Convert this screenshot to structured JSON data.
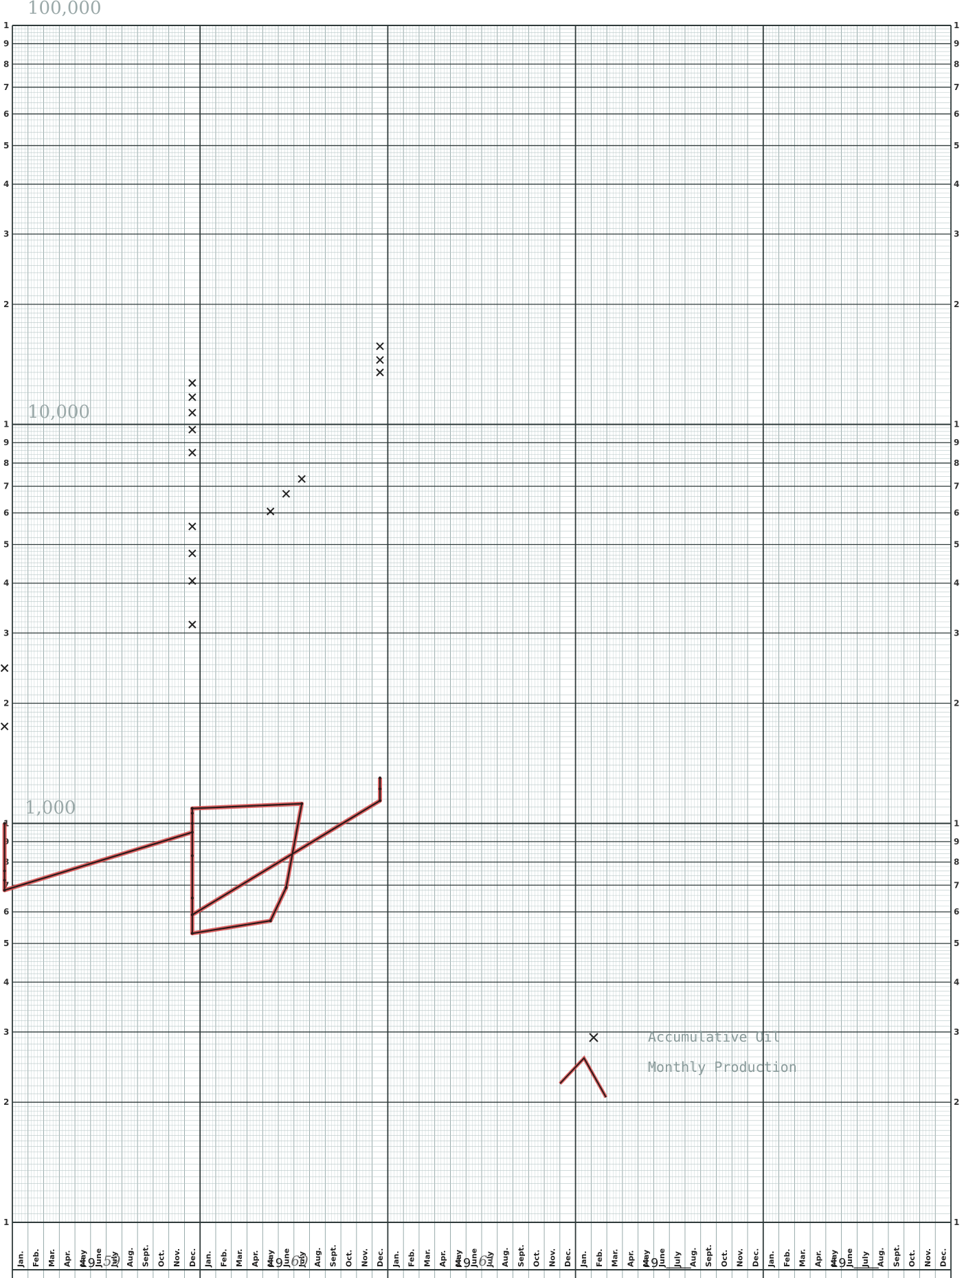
{
  "chart_data": {
    "type": "line",
    "scale": "log",
    "ylim": [
      100,
      100000
    ],
    "decade_labels": [
      "100,000",
      "10,000",
      "1,000"
    ],
    "cycle_ticks": [
      "1",
      "9",
      "8",
      "7",
      "6",
      "5",
      "4",
      "3",
      "2"
    ],
    "bottom_tick": "1",
    "months": [
      "Jan.",
      "Feb.",
      "Mar.",
      "Apr.",
      "May",
      "June",
      "July",
      "Aug.",
      "Sept.",
      "Oct.",
      "Nov.",
      "Dec."
    ],
    "years": [
      {
        "prefix": "19",
        "suffix": "59"
      },
      {
        "prefix": "19",
        "suffix": "60"
      },
      {
        "prefix": "19",
        "suffix": "61"
      },
      {
        "prefix": "19",
        "suffix": "____"
      },
      {
        "prefix": "19",
        "suffix": "____"
      }
    ],
    "grid": true,
    "legend_position": "bottom-right",
    "series": [
      {
        "name": "Accumulative Oil",
        "marker": "X",
        "color": "#222222",
        "x": [
          "1959-Nov",
          "1959-Dec",
          "1960-Jan",
          "1960-Feb",
          "1960-Mar",
          "1960-Apr",
          "1960-May",
          "1960-June",
          "1960-July",
          "1960-Aug",
          "1960-Sept",
          "1960-Oct",
          "1960-Nov",
          "1960-Dec",
          "1961-Jan",
          "1961-Feb",
          "1961-Mar"
        ],
        "values": [
          1750,
          2450,
          3150,
          4050,
          4750,
          5550,
          6050,
          6700,
          7300,
          8500,
          9700,
          10700,
          11700,
          12700,
          13500,
          14500,
          15700
        ]
      },
      {
        "name": "Monthly Production",
        "marker": "line",
        "color": "#d84a4a",
        "x": [
          "1959-Sept",
          "1959-Oct",
          "1959-Nov",
          "1959-Dec",
          "1960-Jan",
          "1960-Feb",
          "1960-Mar",
          "1960-Apr",
          "1960-May",
          "1960-June",
          "1960-July",
          "1960-Aug",
          "1960-Sept",
          "1960-Oct",
          "1960-Nov",
          "1960-Dec",
          "1961-Jan",
          "1961-Feb",
          "1961-Mar"
        ],
        "values": [
          1000,
          720,
          760,
          680,
          950,
          650,
          830,
          530,
          570,
          690,
          1120,
          1090,
          1000,
          1060,
          1090,
          590,
          1140,
          1220,
          1300
        ]
      }
    ]
  }
}
